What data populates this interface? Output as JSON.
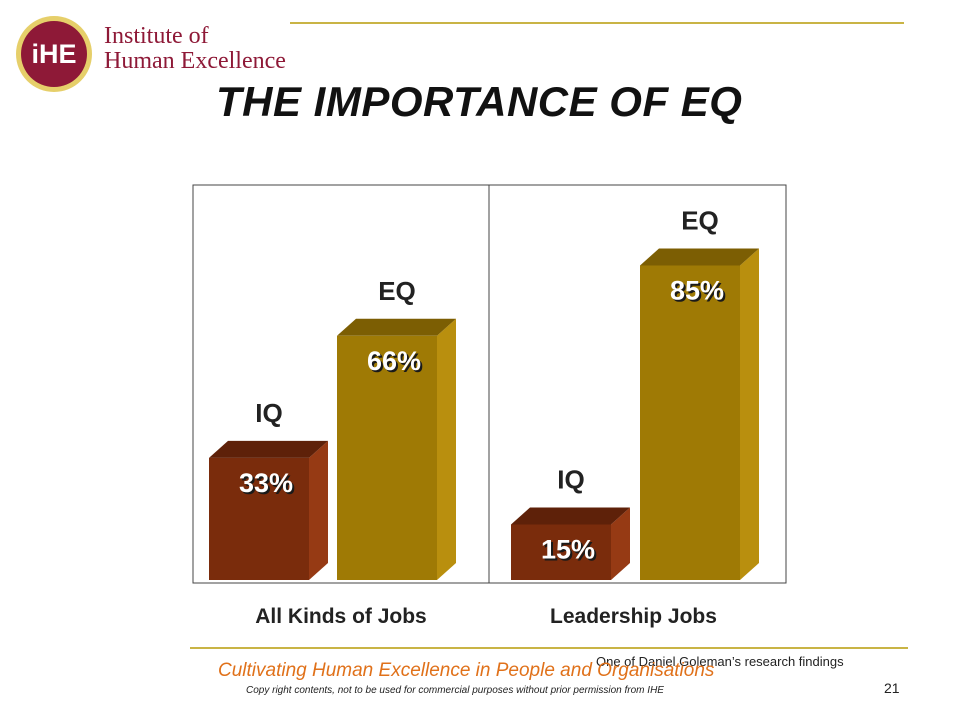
{
  "header": {
    "logo_text": "iHE",
    "brand_line1": "Institute of",
    "brand_line2": "Human Excellence"
  },
  "slide": {
    "title": "THE IMPORTANCE OF EQ",
    "source_note": "One of Daniel Goleman’s research findings",
    "page_number": "21"
  },
  "footer": {
    "tagline": "Cultivating Human Excellence in People and Organisations",
    "copyright": "Copy right contents, not to be used for commercial purposes without prior permission from IHE"
  },
  "colors": {
    "brand": "#8e1937",
    "accent_rule": "#c9b445",
    "tagline": "#e0711a",
    "iq_front": "#7a2c0c",
    "iq_side": "#963a14",
    "iq_top": "#5e2109",
    "eq_front": "#9f7a05",
    "eq_side": "#b98f0e",
    "eq_top": "#7c5e03"
  },
  "chart_data": {
    "type": "bar",
    "style": "3d-columns",
    "categories": [
      "All Kinds of Jobs",
      "Leadership Jobs"
    ],
    "ylim": [
      0,
      100
    ],
    "grid": false,
    "legend": "none",
    "series": [
      {
        "name": "IQ",
        "values": [
          33,
          15
        ],
        "labels": [
          "33%",
          "15%"
        ],
        "color": "#7a2c0c"
      },
      {
        "name": "EQ",
        "values": [
          66,
          85
        ],
        "labels": [
          "66%",
          "85%"
        ],
        "color": "#9f7a05"
      }
    ]
  }
}
